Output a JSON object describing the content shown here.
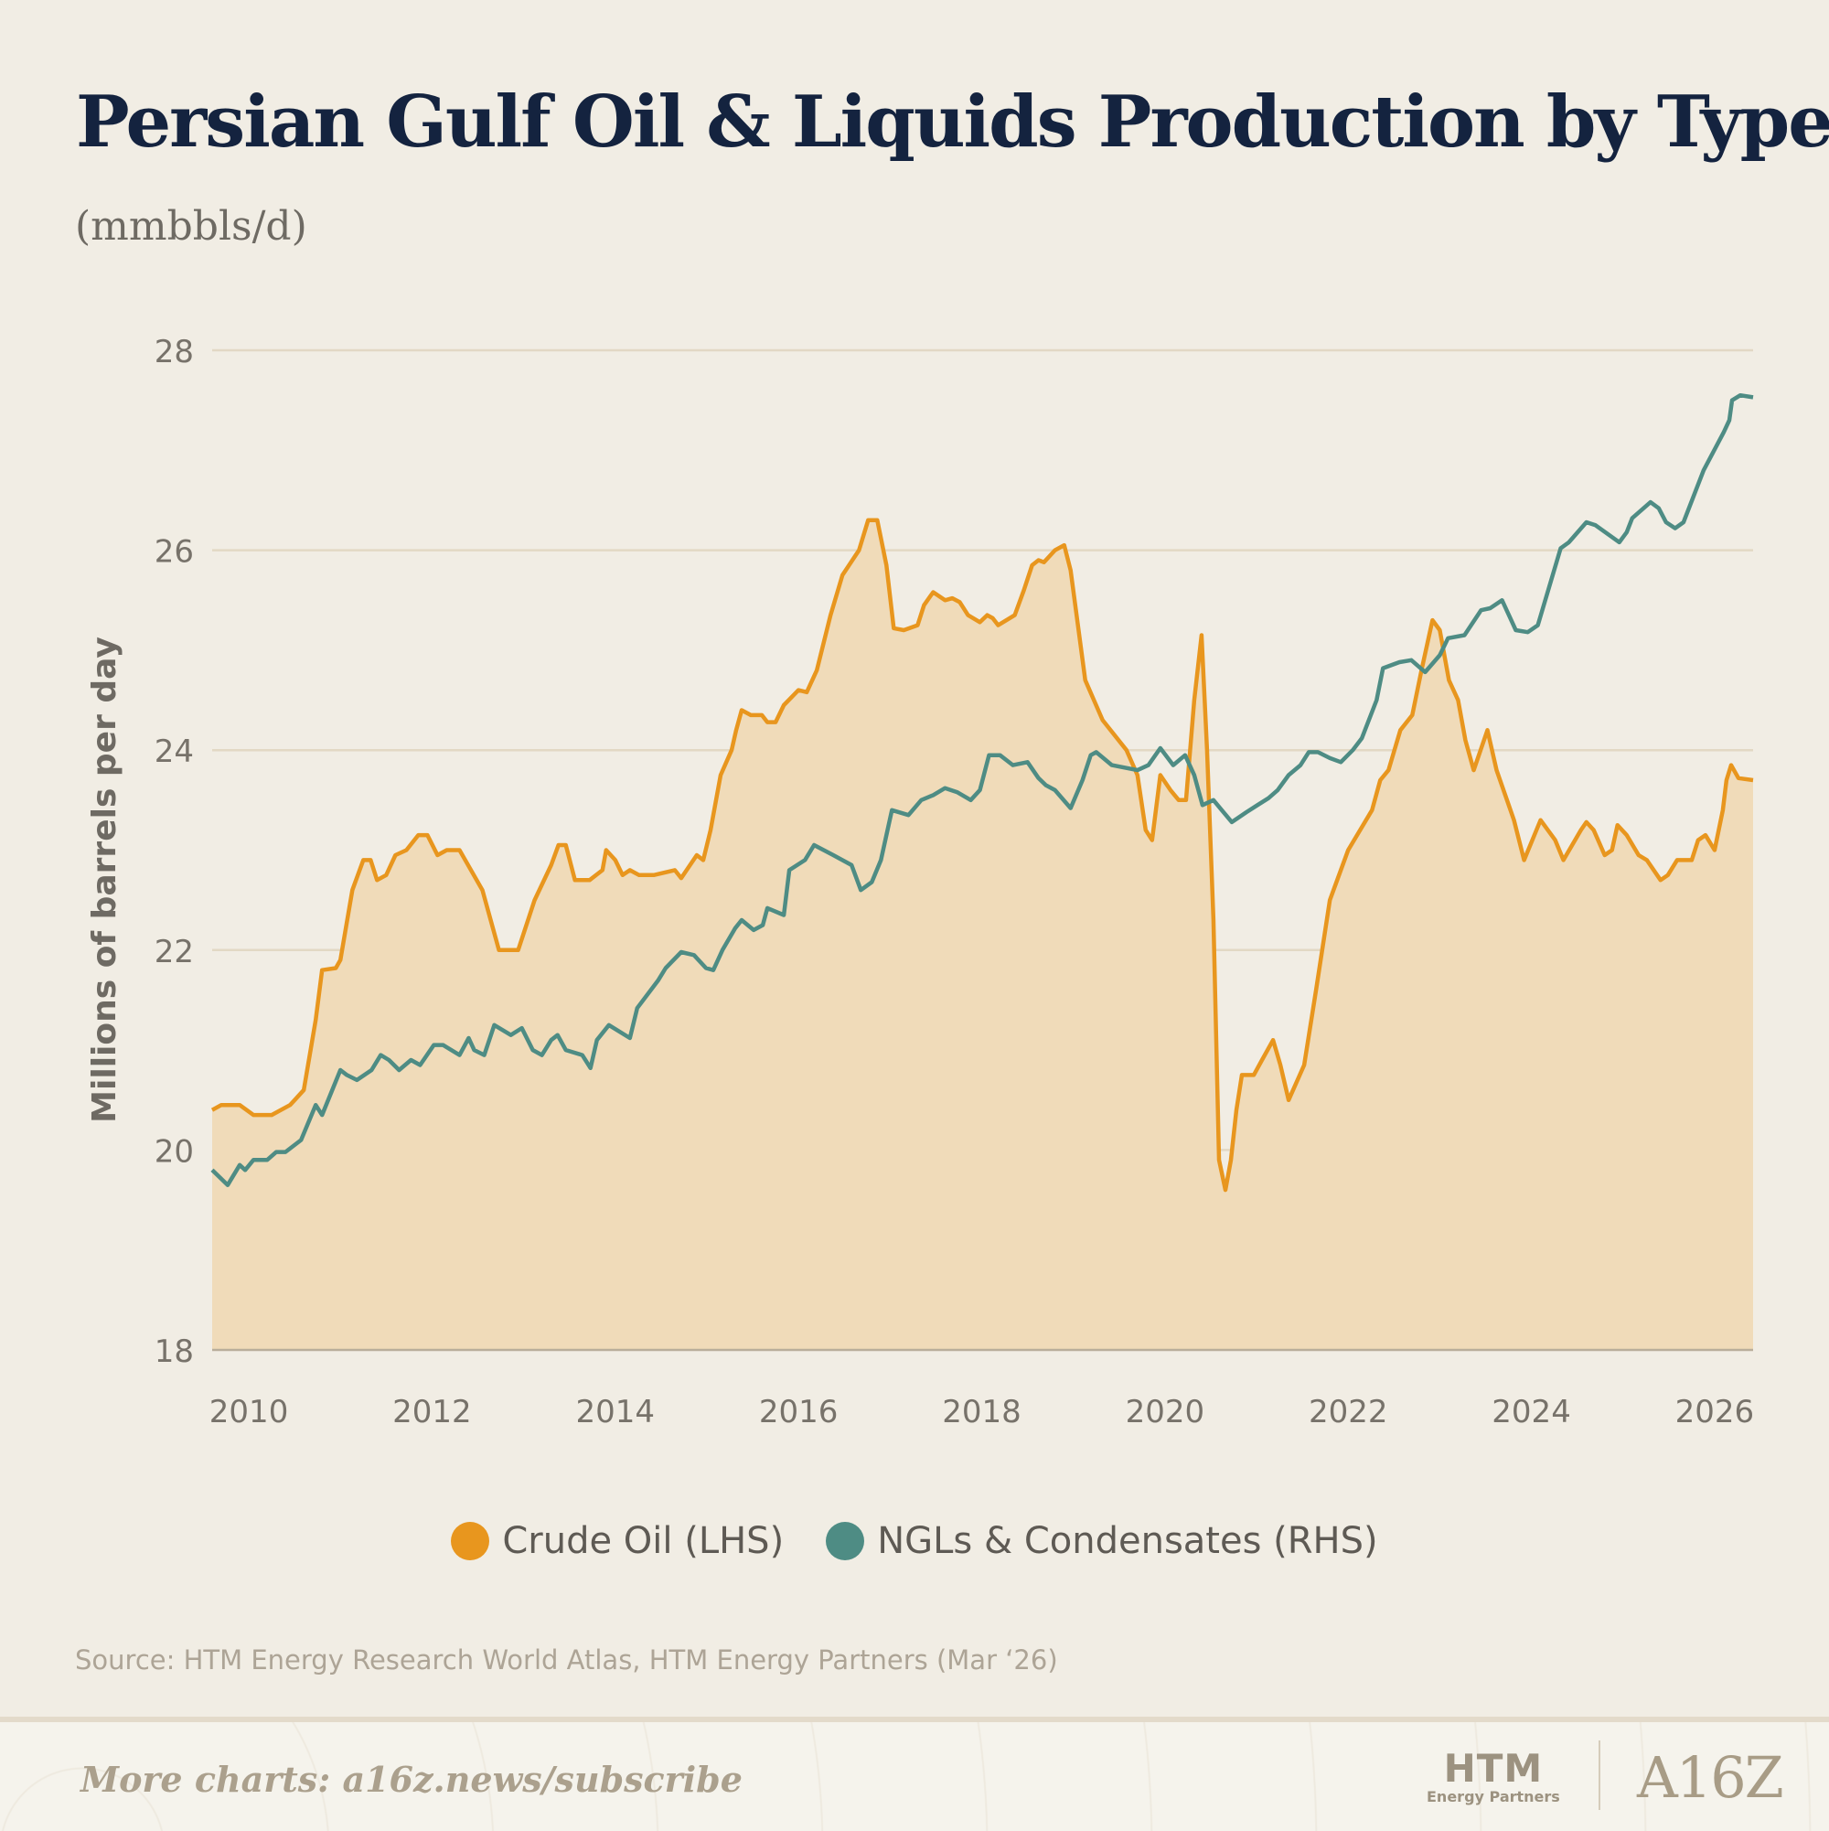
{
  "header": {
    "title": "Persian Gulf Oil & Liquids Production by Type",
    "subtitle": "(mmbbls/d)"
  },
  "chart_data": {
    "type": "line",
    "title": "Persian Gulf Oil & Liquids Production by Type",
    "subtitle": "(mmbbls/d)",
    "xlabel": "",
    "ylabel": "Millions of barrels per day",
    "xlim": [
      2009.6,
      2026.42
    ],
    "ylim": [
      18,
      28
    ],
    "yticks": [
      18,
      20,
      22,
      24,
      26,
      28
    ],
    "xticks": [
      2010,
      2012,
      2014,
      2016,
      2018,
      2020,
      2022,
      2024,
      2026
    ],
    "grid": true,
    "legend_position": "bottom-center",
    "colors": {
      "crude": "#E8961E",
      "ngl": "#4E8C84",
      "fill": "#F0DBB9",
      "grid": "#E2D8C4",
      "axis": "#B9AE9A"
    },
    "series": [
      {
        "name": "Crude Oil (LHS)",
        "key": "crude",
        "filled": true,
        "points": [
          [
            2009.6,
            20.4
          ],
          [
            2009.7,
            20.45
          ],
          [
            2009.9,
            20.45
          ],
          [
            2010.05,
            20.35
          ],
          [
            2010.25,
            20.35
          ],
          [
            2010.45,
            20.45
          ],
          [
            2010.5,
            20.5
          ],
          [
            2010.6,
            20.6
          ],
          [
            2010.73,
            21.3
          ],
          [
            2010.8,
            21.8
          ],
          [
            2010.95,
            21.82
          ],
          [
            2011.0,
            21.9
          ],
          [
            2011.13,
            22.6
          ],
          [
            2011.25,
            22.9
          ],
          [
            2011.33,
            22.9
          ],
          [
            2011.4,
            22.7
          ],
          [
            2011.5,
            22.75
          ],
          [
            2011.6,
            22.95
          ],
          [
            2011.72,
            23.0
          ],
          [
            2011.85,
            23.15
          ],
          [
            2011.95,
            23.15
          ],
          [
            2012.06,
            22.95
          ],
          [
            2012.16,
            23.0
          ],
          [
            2012.3,
            23.0
          ],
          [
            2012.55,
            22.6
          ],
          [
            2012.73,
            22.0
          ],
          [
            2012.94,
            22.0
          ],
          [
            2013.12,
            22.5
          ],
          [
            2013.3,
            22.85
          ],
          [
            2013.38,
            23.05
          ],
          [
            2013.46,
            23.05
          ],
          [
            2013.56,
            22.7
          ],
          [
            2013.72,
            22.7
          ],
          [
            2013.86,
            22.8
          ],
          [
            2013.9,
            23.0
          ],
          [
            2014.0,
            22.9
          ],
          [
            2014.08,
            22.75
          ],
          [
            2014.16,
            22.8
          ],
          [
            2014.26,
            22.75
          ],
          [
            2014.42,
            22.75
          ],
          [
            2014.65,
            22.8
          ],
          [
            2014.72,
            22.72
          ],
          [
            2014.89,
            22.95
          ],
          [
            2014.96,
            22.9
          ],
          [
            2015.04,
            23.2
          ],
          [
            2015.15,
            23.75
          ],
          [
            2015.27,
            24.0
          ],
          [
            2015.32,
            24.2
          ],
          [
            2015.38,
            24.4
          ],
          [
            2015.48,
            24.35
          ],
          [
            2015.6,
            24.35
          ],
          [
            2015.66,
            24.28
          ],
          [
            2015.75,
            24.28
          ],
          [
            2015.84,
            24.45
          ],
          [
            2016.0,
            24.6
          ],
          [
            2016.09,
            24.58
          ],
          [
            2016.2,
            24.8
          ],
          [
            2016.35,
            25.35
          ],
          [
            2016.48,
            25.75
          ],
          [
            2016.66,
            26.0
          ],
          [
            2016.76,
            26.3
          ],
          [
            2016.86,
            26.3
          ],
          [
            2016.96,
            25.85
          ],
          [
            2017.04,
            25.22
          ],
          [
            2017.15,
            25.2
          ],
          [
            2017.3,
            25.25
          ],
          [
            2017.37,
            25.45
          ],
          [
            2017.47,
            25.58
          ],
          [
            2017.6,
            25.5
          ],
          [
            2017.68,
            25.52
          ],
          [
            2017.76,
            25.48
          ],
          [
            2017.85,
            25.35
          ],
          [
            2017.98,
            25.28
          ],
          [
            2018.06,
            25.35
          ],
          [
            2018.12,
            25.32
          ],
          [
            2018.18,
            25.25
          ],
          [
            2018.36,
            25.35
          ],
          [
            2018.46,
            25.6
          ],
          [
            2018.55,
            25.85
          ],
          [
            2018.62,
            25.9
          ],
          [
            2018.68,
            25.88
          ],
          [
            2018.8,
            26.0
          ],
          [
            2018.9,
            26.05
          ],
          [
            2018.97,
            25.8
          ],
          [
            2019.13,
            24.7
          ],
          [
            2019.32,
            24.3
          ],
          [
            2019.58,
            24.0
          ],
          [
            2019.7,
            23.75
          ],
          [
            2019.79,
            23.2
          ],
          [
            2019.86,
            23.1
          ],
          [
            2019.95,
            23.75
          ],
          [
            2020.06,
            23.6
          ],
          [
            2020.15,
            23.5
          ],
          [
            2020.23,
            23.5
          ],
          [
            2020.32,
            24.5
          ],
          [
            2020.4,
            25.15
          ],
          [
            2020.46,
            24.0
          ],
          [
            2020.53,
            22.3
          ],
          [
            2020.59,
            19.9
          ],
          [
            2020.66,
            19.6
          ],
          [
            2020.72,
            19.9
          ],
          [
            2020.78,
            20.4
          ],
          [
            2020.84,
            20.75
          ],
          [
            2020.97,
            20.75
          ],
          [
            2021.06,
            20.9
          ],
          [
            2021.18,
            21.1
          ],
          [
            2021.26,
            20.85
          ],
          [
            2021.35,
            20.5
          ],
          [
            2021.52,
            20.85
          ],
          [
            2021.65,
            21.6
          ],
          [
            2021.8,
            22.5
          ],
          [
            2021.9,
            22.75
          ],
          [
            2022.0,
            23.0
          ],
          [
            2022.26,
            23.4
          ],
          [
            2022.35,
            23.7
          ],
          [
            2022.44,
            23.8
          ],
          [
            2022.57,
            24.2
          ],
          [
            2022.7,
            24.35
          ],
          [
            2022.8,
            24.8
          ],
          [
            2022.92,
            25.3
          ],
          [
            2023.0,
            25.2
          ],
          [
            2023.1,
            24.7
          ],
          [
            2023.2,
            24.5
          ],
          [
            2023.28,
            24.1
          ],
          [
            2023.37,
            23.8
          ],
          [
            2023.52,
            24.2
          ],
          [
            2023.62,
            23.8
          ],
          [
            2023.81,
            23.3
          ],
          [
            2023.92,
            22.9
          ],
          [
            2024.1,
            23.3
          ],
          [
            2024.26,
            23.1
          ],
          [
            2024.35,
            22.9
          ],
          [
            2024.54,
            23.2
          ],
          [
            2024.6,
            23.28
          ],
          [
            2024.68,
            23.2
          ],
          [
            2024.8,
            22.95
          ],
          [
            2024.88,
            23.0
          ],
          [
            2024.94,
            23.25
          ],
          [
            2025.04,
            23.15
          ],
          [
            2025.17,
            22.95
          ],
          [
            2025.26,
            22.9
          ],
          [
            2025.41,
            22.7
          ],
          [
            2025.49,
            22.75
          ],
          [
            2025.59,
            22.9
          ],
          [
            2025.75,
            22.9
          ],
          [
            2025.82,
            23.1
          ],
          [
            2025.9,
            23.15
          ],
          [
            2026.0,
            23.0
          ],
          [
            2026.09,
            23.4
          ],
          [
            2026.13,
            23.7
          ],
          [
            2026.18,
            23.85
          ],
          [
            2026.26,
            23.72
          ],
          [
            2026.42,
            23.7
          ]
        ]
      },
      {
        "name": "NGLs & Condensates (RHS)",
        "key": "ngl",
        "filled": false,
        "points": [
          [
            2009.6,
            19.8
          ],
          [
            2009.77,
            19.65
          ],
          [
            2009.9,
            19.85
          ],
          [
            2009.96,
            19.8
          ],
          [
            2010.05,
            19.9
          ],
          [
            2010.2,
            19.9
          ],
          [
            2010.3,
            19.98
          ],
          [
            2010.4,
            19.98
          ],
          [
            2010.57,
            20.1
          ],
          [
            2010.73,
            20.45
          ],
          [
            2010.8,
            20.35
          ],
          [
            2011.0,
            20.8
          ],
          [
            2011.07,
            20.75
          ],
          [
            2011.18,
            20.7
          ],
          [
            2011.34,
            20.8
          ],
          [
            2011.44,
            20.95
          ],
          [
            2011.53,
            20.9
          ],
          [
            2011.64,
            20.8
          ],
          [
            2011.77,
            20.9
          ],
          [
            2011.87,
            20.85
          ],
          [
            2012.02,
            21.05
          ],
          [
            2012.12,
            21.05
          ],
          [
            2012.3,
            20.95
          ],
          [
            2012.4,
            21.12
          ],
          [
            2012.46,
            21.0
          ],
          [
            2012.57,
            20.95
          ],
          [
            2012.68,
            21.25
          ],
          [
            2012.86,
            21.15
          ],
          [
            2012.98,
            21.22
          ],
          [
            2013.1,
            21.0
          ],
          [
            2013.2,
            20.95
          ],
          [
            2013.3,
            21.1
          ],
          [
            2013.37,
            21.15
          ],
          [
            2013.46,
            21.0
          ],
          [
            2013.64,
            20.95
          ],
          [
            2013.73,
            20.82
          ],
          [
            2013.8,
            21.1
          ],
          [
            2013.93,
            21.25
          ],
          [
            2014.16,
            21.12
          ],
          [
            2014.24,
            21.42
          ],
          [
            2014.47,
            21.7
          ],
          [
            2014.55,
            21.82
          ],
          [
            2014.72,
            21.98
          ],
          [
            2014.86,
            21.95
          ],
          [
            2014.99,
            21.82
          ],
          [
            2015.07,
            21.8
          ],
          [
            2015.17,
            22.0
          ],
          [
            2015.31,
            22.22
          ],
          [
            2015.38,
            22.3
          ],
          [
            2015.51,
            22.2
          ],
          [
            2015.61,
            22.25
          ],
          [
            2015.66,
            22.42
          ],
          [
            2015.84,
            22.35
          ],
          [
            2015.9,
            22.8
          ],
          [
            2016.07,
            22.9
          ],
          [
            2016.17,
            23.05
          ],
          [
            2016.38,
            22.95
          ],
          [
            2016.58,
            22.85
          ],
          [
            2016.68,
            22.6
          ],
          [
            2016.8,
            22.68
          ],
          [
            2016.9,
            22.9
          ],
          [
            2017.02,
            23.4
          ],
          [
            2017.2,
            23.35
          ],
          [
            2017.34,
            23.5
          ],
          [
            2017.47,
            23.55
          ],
          [
            2017.6,
            23.62
          ],
          [
            2017.73,
            23.58
          ],
          [
            2017.88,
            23.5
          ],
          [
            2017.98,
            23.6
          ],
          [
            2018.08,
            23.95
          ],
          [
            2018.2,
            23.95
          ],
          [
            2018.34,
            23.85
          ],
          [
            2018.5,
            23.88
          ],
          [
            2018.62,
            23.72
          ],
          [
            2018.7,
            23.65
          ],
          [
            2018.8,
            23.6
          ],
          [
            2018.97,
            23.42
          ],
          [
            2019.1,
            23.7
          ],
          [
            2019.19,
            23.95
          ],
          [
            2019.25,
            23.98
          ],
          [
            2019.42,
            23.85
          ],
          [
            2019.7,
            23.8
          ],
          [
            2019.82,
            23.85
          ],
          [
            2019.95,
            24.02
          ],
          [
            2020.09,
            23.85
          ],
          [
            2020.22,
            23.95
          ],
          [
            2020.32,
            23.75
          ],
          [
            2020.41,
            23.45
          ],
          [
            2020.53,
            23.5
          ],
          [
            2020.62,
            23.4
          ],
          [
            2020.73,
            23.28
          ],
          [
            2020.89,
            23.38
          ],
          [
            2021.01,
            23.45
          ],
          [
            2021.13,
            23.52
          ],
          [
            2021.23,
            23.6
          ],
          [
            2021.35,
            23.75
          ],
          [
            2021.48,
            23.85
          ],
          [
            2021.57,
            23.98
          ],
          [
            2021.67,
            23.98
          ],
          [
            2021.8,
            23.92
          ],
          [
            2021.92,
            23.88
          ],
          [
            2022.05,
            24.0
          ],
          [
            2022.15,
            24.12
          ],
          [
            2022.31,
            24.5
          ],
          [
            2022.38,
            24.82
          ],
          [
            2022.56,
            24.88
          ],
          [
            2022.69,
            24.9
          ],
          [
            2022.84,
            24.78
          ],
          [
            2023.0,
            24.95
          ],
          [
            2023.09,
            25.12
          ],
          [
            2023.27,
            25.15
          ],
          [
            2023.45,
            25.4
          ],
          [
            2023.55,
            25.42
          ],
          [
            2023.68,
            25.5
          ],
          [
            2023.83,
            25.2
          ],
          [
            2023.96,
            25.18
          ],
          [
            2024.07,
            25.25
          ],
          [
            2024.32,
            26.02
          ],
          [
            2024.41,
            26.08
          ],
          [
            2024.6,
            26.28
          ],
          [
            2024.7,
            26.25
          ],
          [
            2024.96,
            26.08
          ],
          [
            2025.04,
            26.18
          ],
          [
            2025.1,
            26.32
          ],
          [
            2025.3,
            26.48
          ],
          [
            2025.39,
            26.42
          ],
          [
            2025.47,
            26.28
          ],
          [
            2025.57,
            26.22
          ],
          [
            2025.66,
            26.28
          ],
          [
            2025.88,
            26.8
          ],
          [
            2026.1,
            27.18
          ],
          [
            2026.16,
            27.3
          ],
          [
            2026.19,
            27.5
          ],
          [
            2026.28,
            27.55
          ],
          [
            2026.42,
            27.53
          ]
        ]
      }
    ]
  },
  "legend": {
    "items": [
      {
        "label": "Crude Oil (LHS)",
        "color": "#E8961E"
      },
      {
        "label": "NGLs & Condensates (RHS)",
        "color": "#4E8C84"
      }
    ]
  },
  "source": "Source: HTM Energy Research World Atlas, HTM Energy Partners (Mar ‘26)",
  "footer": {
    "more_charts": "More charts: a16z.news/subscribe",
    "htm_logo": "HTM",
    "htm_sub": "Energy Partners",
    "a16z_logo": "A16Z"
  }
}
